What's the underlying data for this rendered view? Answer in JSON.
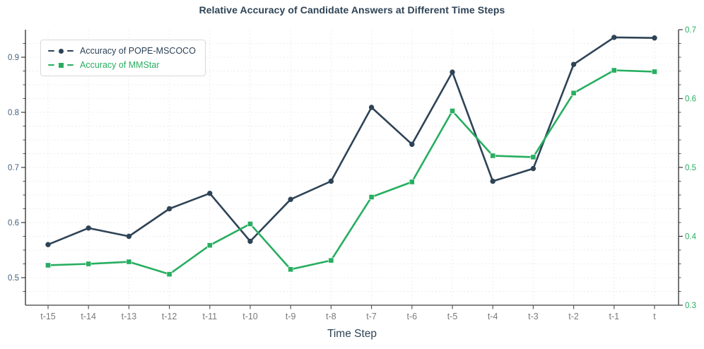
{
  "figure": {
    "title": "Relative Accuracy of Candidate Answers at Different Time Steps",
    "xlabel": "Time Step"
  },
  "legend": {
    "position": "upper left",
    "items": [
      {
        "label": "Accuracy of POPE-MSCOCO",
        "color": "#2e4356",
        "marker": "circle"
      },
      {
        "label": "Accuracy of MMStar",
        "color": "#27ae60",
        "marker": "square"
      }
    ]
  },
  "chart_data": {
    "type": "line",
    "title": "Relative Accuracy of Candidate Answers at Different Time Steps",
    "xlabel": "Time Step",
    "categories": [
      "t-15",
      "t-14",
      "t-13",
      "t-12",
      "t-11",
      "t-10",
      "t-9",
      "t-8",
      "t-7",
      "t-6",
      "t-5",
      "t-4",
      "t-3",
      "t-2",
      "t-1",
      "t"
    ],
    "series": [
      {
        "name": "Accuracy of POPE-MSCOCO",
        "axis": "left",
        "color": "#2e4356",
        "marker": "circle",
        "values": [
          0.56,
          0.59,
          0.575,
          0.625,
          0.653,
          0.566,
          0.642,
          0.675,
          0.809,
          0.742,
          0.873,
          0.675,
          0.698,
          0.887,
          0.936,
          0.935
        ]
      },
      {
        "name": "Accuracy of MMStar",
        "axis": "right",
        "color": "#27ae60",
        "marker": "square",
        "values": [
          0.358,
          0.36,
          0.363,
          0.345,
          0.387,
          0.418,
          0.352,
          0.365,
          0.457,
          0.479,
          0.582,
          0.517,
          0.515,
          0.608,
          0.641,
          0.639
        ]
      }
    ],
    "left_axis": {
      "range": [
        0.45,
        0.95
      ],
      "ticks": [
        0.5,
        0.6,
        0.7,
        0.8,
        0.9
      ],
      "tick_labels": [
        "0.5",
        "0.6",
        "0.7",
        "0.8",
        "0.9"
      ],
      "minor_step": 0.025,
      "label_color": "#44617e"
    },
    "right_axis": {
      "range": [
        0.3,
        0.7
      ],
      "ticks": [
        0.3,
        0.4,
        0.5,
        0.6,
        0.7
      ],
      "tick_labels": [
        "0.3",
        "0.4",
        "0.5",
        "0.6",
        "0.7"
      ],
      "minor_step": 0.02,
      "label_color": "#27ae60"
    },
    "grid": true,
    "legend_position": "upper left"
  },
  "colors": {
    "title": "#2e4356",
    "x_tick_label": "#7a7a7a",
    "grid": "#ececf0",
    "spine_side": "#2b2b2b",
    "spine_bottom": "#5f5f5f",
    "tick_mark": "#3a3a3a",
    "x_tick_mark": "#5a5a5a"
  }
}
